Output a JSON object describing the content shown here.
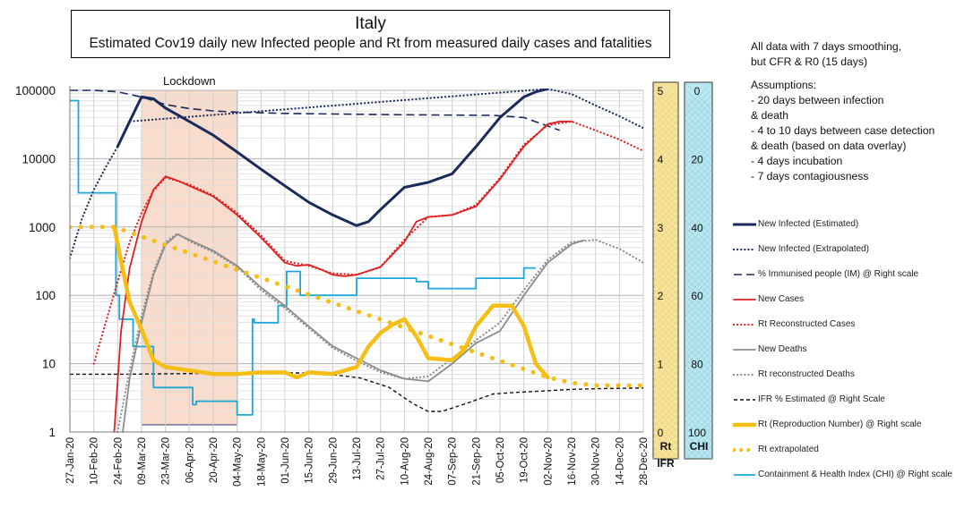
{
  "title": "Italy",
  "subtitle": "Estimated Cov19 daily new Infected people and Rt from measured daily cases and fatalities",
  "notes": {
    "line1": "All data with 7 days smoothing,",
    "line2": "but CFR & R0 (15 days)",
    "assumptions_title": "Assumptions:",
    "items": [
      "- 20 days between infection",
      "& death",
      "- 4 to 10 days between case detection",
      "& death (based on data overlay)",
      "- 4 days incubation",
      "- 7 days contagiousness"
    ]
  },
  "lockdown_label": "Lockdown",
  "colors": {
    "navy": "#1a2a5a",
    "red": "#e02020",
    "gray": "#8c8c8c",
    "black": "#111111",
    "gold": "#f5be14",
    "cyan": "#1aa7d9",
    "lockdown_fill": "#f9dccb",
    "rt_panel": "#f6e49e",
    "chi_panel": "#b9e6ef"
  },
  "chart_data": {
    "type": "line",
    "x_axis": {
      "type": "date",
      "range": [
        "2020-01-27",
        "2020-12-28"
      ],
      "tick_labels": [
        "27-Jan-20",
        "10-Feb-20",
        "24-Feb-20",
        "09-Mar-20",
        "23-Mar-20",
        "06-Apr-20",
        "20-Apr-20",
        "04-May-20",
        "18-May-20",
        "01-Jun-20",
        "15-Jun-20",
        "29-Jun-20",
        "13-Jul-20",
        "27-Jul-20",
        "10-Aug-20",
        "24-Aug-20",
        "07-Sep-20",
        "21-Sep-20",
        "05-Oct-20",
        "19-Oct-20",
        "02-Nov-20",
        "16-Nov-20",
        "30-Nov-20",
        "14-Dec-20",
        "28-Dec-20"
      ]
    },
    "y_left": {
      "scale": "log",
      "range": [
        1,
        100000
      ],
      "tick_labels": [
        "100000",
        "10000",
        "1000",
        "100",
        "10",
        "1"
      ]
    },
    "rt_axis": {
      "title": "Rt",
      "range": [
        0,
        5
      ],
      "tick_labels": [
        "5",
        "4",
        "3",
        "2",
        "1",
        "0"
      ]
    },
    "ifr_axis": {
      "title": "IFR"
    },
    "chi_axis": {
      "title": "CHI",
      "range": [
        100,
        0
      ],
      "tick_labels": [
        "0",
        "20",
        "40",
        "60",
        "80",
        "100"
      ]
    },
    "lockdown": {
      "start": "2020-03-09",
      "end": "2020-05-04"
    },
    "grid": true,
    "series": [
      {
        "name": "New Infected (Estimated)",
        "axis": "left",
        "style": "solid-thick",
        "color": "#1a2a5a",
        "x": [
          "2020-02-24",
          "2020-03-02",
          "2020-03-09",
          "2020-03-16",
          "2020-03-23",
          "2020-04-06",
          "2020-04-20",
          "2020-05-04",
          "2020-05-18",
          "2020-06-01",
          "2020-06-15",
          "2020-06-29",
          "2020-07-13",
          "2020-07-20",
          "2020-07-27",
          "2020-08-10",
          "2020-08-24",
          "2020-09-07",
          "2020-09-21",
          "2020-10-05",
          "2020-10-19",
          "2020-10-26",
          "2020-11-02"
        ],
        "y": [
          15000,
          35000,
          80000,
          75000,
          55000,
          35000,
          22000,
          12500,
          7000,
          4000,
          2300,
          1500,
          1050,
          1200,
          1800,
          3800,
          4500,
          6000,
          15000,
          40000,
          80000,
          95000,
          105000
        ]
      },
      {
        "name": "New Infected (Extrapolated)",
        "axis": "left",
        "style": "dotted",
        "color": "#1a2a5a",
        "x": [
          "2020-01-27",
          "2020-02-03",
          "2020-02-10",
          "2020-02-17",
          "2020-02-24",
          "2020-03-02",
          "2020-11-02",
          "2020-11-16",
          "2020-11-30",
          "2020-12-14",
          "2020-12-28"
        ],
        "y": [
          350,
          1300,
          3500,
          7500,
          15000,
          35000,
          105000,
          88000,
          60000,
          42000,
          28000
        ]
      },
      {
        "name": "% Immunised people (IM) @ Right scale",
        "axis": "left",
        "style": "dashed",
        "color": "#1a2a5a",
        "x": [
          "2020-01-27",
          "2020-02-10",
          "2020-02-24",
          "2020-03-09",
          "2020-03-23",
          "2020-04-06",
          "2020-04-20",
          "2020-05-04",
          "2020-06-01",
          "2020-07-01",
          "2020-08-01",
          "2020-09-01",
          "2020-10-01",
          "2020-10-19",
          "2020-11-02",
          "2020-11-09"
        ],
        "y": [
          100000,
          100000,
          95000,
          80000,
          62000,
          54000,
          50000,
          48000,
          46000,
          45000,
          44000,
          43500,
          43000,
          40000,
          30000,
          26000
        ]
      },
      {
        "name": "New Cases",
        "axis": "left",
        "style": "solid",
        "color": "#e02020",
        "x": [
          "2020-02-22",
          "2020-02-26",
          "2020-03-02",
          "2020-03-09",
          "2020-03-16",
          "2020-03-23",
          "2020-03-30",
          "2020-04-06",
          "2020-04-20",
          "2020-05-04",
          "2020-05-18",
          "2020-06-01",
          "2020-06-08",
          "2020-06-15",
          "2020-06-22",
          "2020-06-29",
          "2020-07-06",
          "2020-07-13",
          "2020-07-27",
          "2020-08-10",
          "2020-08-17",
          "2020-08-24",
          "2020-09-07",
          "2020-09-21",
          "2020-10-05",
          "2020-10-19",
          "2020-11-02",
          "2020-11-09",
          "2020-11-16"
        ],
        "y": [
          1,
          30,
          250,
          1200,
          3500,
          5500,
          4800,
          4000,
          2800,
          1500,
          700,
          300,
          270,
          280,
          240,
          200,
          190,
          200,
          260,
          600,
          1200,
          1400,
          1500,
          2000,
          5000,
          15000,
          32000,
          35000,
          35000
        ]
      },
      {
        "name": "Rt Reconstructed Cases",
        "axis": "left",
        "style": "dotted",
        "color": "#e02020",
        "x": [
          "2020-02-10",
          "2020-02-17",
          "2020-02-24",
          "2020-03-02",
          "2020-03-09",
          "2020-03-16",
          "2020-03-23",
          "2020-04-06",
          "2020-04-20",
          "2020-05-04",
          "2020-05-18",
          "2020-06-01",
          "2020-06-15",
          "2020-06-29",
          "2020-07-13",
          "2020-07-27",
          "2020-08-10",
          "2020-08-24",
          "2020-09-07",
          "2020-09-21",
          "2020-10-05",
          "2020-10-19",
          "2020-11-02",
          "2020-11-16",
          "2020-11-30",
          "2020-12-14",
          "2020-12-28"
        ],
        "y": [
          10,
          40,
          160,
          600,
          1600,
          3400,
          5300,
          4200,
          2900,
          1600,
          750,
          320,
          270,
          210,
          200,
          260,
          650,
          1400,
          1500,
          2100,
          5200,
          16000,
          31000,
          35000,
          26000,
          19000,
          13000
        ]
      },
      {
        "name": "New Deaths",
        "axis": "left",
        "style": "solid",
        "color": "#8c8c8c",
        "x": [
          "2020-02-27",
          "2020-03-02",
          "2020-03-09",
          "2020-03-16",
          "2020-03-23",
          "2020-03-30",
          "2020-04-06",
          "2020-04-20",
          "2020-05-04",
          "2020-05-18",
          "2020-06-01",
          "2020-06-15",
          "2020-06-29",
          "2020-07-13",
          "2020-07-27",
          "2020-08-10",
          "2020-08-24",
          "2020-09-07",
          "2020-09-21",
          "2020-10-05",
          "2020-10-19",
          "2020-11-02",
          "2020-11-16",
          "2020-11-23"
        ],
        "y": [
          1,
          6,
          40,
          200,
          550,
          780,
          650,
          450,
          270,
          130,
          70,
          35,
          18,
          12,
          8,
          6,
          5.5,
          10,
          20,
          30,
          100,
          300,
          560,
          640
        ]
      },
      {
        "name": "Rt reconstructed Deaths",
        "axis": "left",
        "style": "dotted",
        "color": "#8c8c8c",
        "x": [
          "2020-02-24",
          "2020-03-02",
          "2020-03-09",
          "2020-03-16",
          "2020-03-23",
          "2020-03-30",
          "2020-04-06",
          "2020-04-20",
          "2020-05-04",
          "2020-05-18",
          "2020-06-01",
          "2020-06-15",
          "2020-06-29",
          "2020-07-13",
          "2020-07-27",
          "2020-08-10",
          "2020-08-24",
          "2020-09-07",
          "2020-09-21",
          "2020-10-05",
          "2020-10-19",
          "2020-11-02",
          "2020-11-16",
          "2020-11-30",
          "2020-12-14",
          "2020-12-28"
        ],
        "y": [
          1,
          8,
          50,
          220,
          600,
          800,
          620,
          430,
          260,
          120,
          65,
          33,
          17,
          11,
          7.5,
          6,
          6.5,
          12,
          22,
          40,
          120,
          330,
          600,
          650,
          480,
          300
        ]
      },
      {
        "name": "IFR % Estimated  @ Right Scale",
        "axis": "left",
        "style": "dashed-small",
        "color": "#111111",
        "x": [
          "2020-01-27",
          "2020-03-01",
          "2020-04-15",
          "2020-05-15",
          "2020-06-15",
          "2020-07-01",
          "2020-07-15",
          "2020-08-01",
          "2020-08-15",
          "2020-08-24",
          "2020-09-01",
          "2020-09-15",
          "2020-10-01",
          "2020-10-15",
          "2020-11-01",
          "2020-11-15",
          "2020-12-01",
          "2020-12-28"
        ],
        "y": [
          7,
          7,
          7.2,
          7.3,
          7.3,
          6.8,
          6.2,
          4.5,
          2.6,
          2,
          2,
          2.6,
          3.6,
          3.8,
          4,
          4.2,
          4.3,
          4.4
        ]
      },
      {
        "name": "Rt (Reproduction Number) @ Right scale",
        "axis": "rt",
        "style": "solid-thick",
        "color": "#f5be14",
        "x": [
          "2020-02-22",
          "2020-02-26",
          "2020-03-02",
          "2020-03-09",
          "2020-03-16",
          "2020-03-23",
          "2020-04-06",
          "2020-04-20",
          "2020-05-04",
          "2020-05-18",
          "2020-06-01",
          "2020-06-08",
          "2020-06-15",
          "2020-06-29",
          "2020-07-13",
          "2020-07-20",
          "2020-07-27",
          "2020-08-03",
          "2020-08-10",
          "2020-08-17",
          "2020-08-24",
          "2020-09-07",
          "2020-09-14",
          "2020-09-21",
          "2020-10-01",
          "2020-10-05",
          "2020-10-12",
          "2020-10-19",
          "2020-10-26",
          "2020-11-02"
        ],
        "y": [
          3,
          2.5,
          1.9,
          1.5,
          1.05,
          0.95,
          0.9,
          0.85,
          0.85,
          0.87,
          0.87,
          0.8,
          0.87,
          0.85,
          0.95,
          1.25,
          1.45,
          1.57,
          1.65,
          1.4,
          1.08,
          1.05,
          1.2,
          1.55,
          1.85,
          1.85,
          1.85,
          1.55,
          1.0,
          0.8
        ]
      },
      {
        "name": "Rt extrapolated",
        "axis": "rt",
        "style": "dotted-thick",
        "color": "#f5be14",
        "x": [
          "2020-01-27",
          "2020-02-10",
          "2020-02-22",
          "2020-11-02",
          "2020-11-16",
          "2020-11-30",
          "2020-12-14",
          "2020-12-28"
        ],
        "y": [
          3,
          3,
          3,
          0.8,
          0.72,
          0.68,
          0.68,
          0.68
        ]
      },
      {
        "name": "Containment & Health Index (CHI) @ Right scale",
        "axis": "chi",
        "style": "step",
        "color": "#1aa7d9",
        "x": [
          "2020-01-27",
          "2020-01-28",
          "2020-02-01",
          "2020-02-21",
          "2020-02-23",
          "2020-02-25",
          "2020-03-02",
          "2020-03-04",
          "2020-03-12",
          "2020-03-16",
          "2020-04-06",
          "2020-04-08",
          "2020-04-10",
          "2020-05-04",
          "2020-05-13",
          "2020-05-14",
          "2020-05-28",
          "2020-06-02",
          "2020-06-08",
          "2020-06-10",
          "2020-07-06",
          "2020-07-13",
          "2020-07-20",
          "2020-08-10",
          "2020-08-17",
          "2020-08-24",
          "2020-09-01",
          "2020-09-07",
          "2020-09-21",
          "2020-10-19",
          "2020-10-26"
        ],
        "y": [
          3,
          3,
          30,
          30,
          60,
          67,
          67,
          75,
          75,
          87,
          87,
          92,
          91,
          95,
          67,
          68,
          63,
          53,
          53,
          60,
          60,
          55,
          55,
          55,
          56,
          58,
          58,
          58,
          55,
          52,
          52
        ]
      }
    ]
  }
}
